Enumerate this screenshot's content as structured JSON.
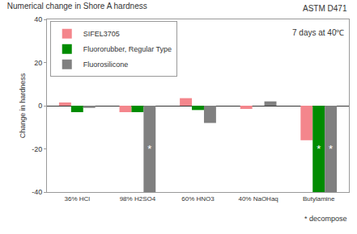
{
  "chart_data": {
    "type": "bar",
    "title": "Numerical change in Shore A hardness",
    "subtitle": "ASTM D471",
    "annotation": "7 days at 40℃",
    "footnote": "* decompose",
    "y_label": "Change in hardness",
    "categories": [
      "36% HCl",
      "98% H2SO4",
      "60% HNO3",
      "40% NaOHaq",
      "Butylamine"
    ],
    "series": [
      {
        "name": "SIFEL3705",
        "color": "#f4868c",
        "values": [
          1.5,
          -3,
          3.5,
          -1.5,
          -16
        ],
        "notes": [
          null,
          null,
          null,
          null,
          null
        ]
      },
      {
        "name": "Fluororubber, Regular Type",
        "color": "#008c00",
        "values": [
          -3,
          -3,
          -2,
          0,
          -40
        ],
        "notes": [
          null,
          null,
          null,
          null,
          "*"
        ]
      },
      {
        "name": "Fluorosilicone",
        "color": "#808080",
        "values": [
          -1,
          -40,
          -8,
          2,
          -40
        ],
        "notes": [
          null,
          "*",
          null,
          null,
          "*"
        ]
      }
    ],
    "ylim": [
      -40,
      40
    ],
    "yticks": [
      -40,
      -20,
      0,
      20,
      40
    ],
    "grid": false,
    "legend": "upper left",
    "data_labels": false
  }
}
